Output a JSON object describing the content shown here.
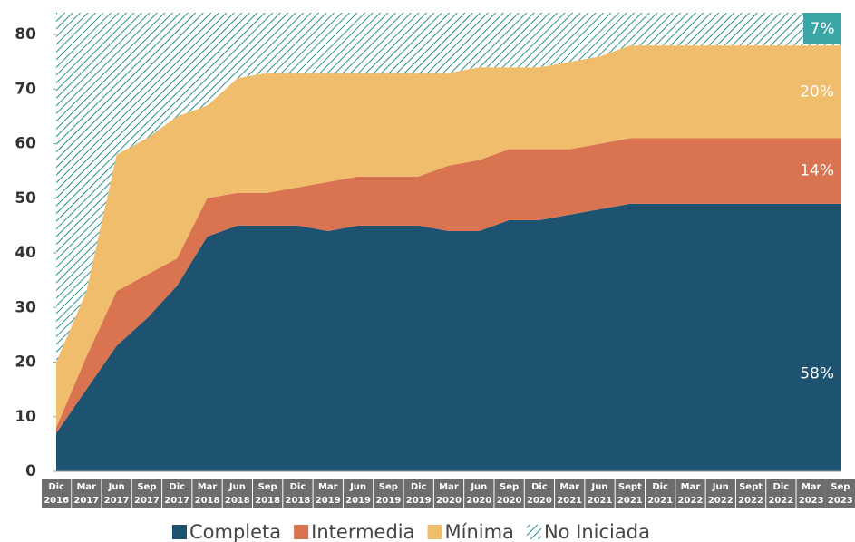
{
  "chart_data": {
    "type": "stacked_area",
    "categories": [
      [
        "Dic",
        "2016"
      ],
      [
        "Mar",
        "2017"
      ],
      [
        "Jun",
        "2017"
      ],
      [
        "Sep",
        "2017"
      ],
      [
        "Dic",
        "2017"
      ],
      [
        "Mar",
        "2018"
      ],
      [
        "Jun",
        "2018"
      ],
      [
        "Sep",
        "2018"
      ],
      [
        "Dic",
        "2018"
      ],
      [
        "Mar",
        "2019"
      ],
      [
        "Jun",
        "2019"
      ],
      [
        "Sep",
        "2019"
      ],
      [
        "Dic",
        "2019"
      ],
      [
        "Mar",
        "2020"
      ],
      [
        "Jun",
        "2020"
      ],
      [
        "Sep",
        "2020"
      ],
      [
        "Dic",
        "2020"
      ],
      [
        "Mar",
        "2021"
      ],
      [
        "Jun",
        "2021"
      ],
      [
        "Sept",
        "2021"
      ],
      [
        "Dic",
        "2021"
      ],
      [
        "Mar",
        "2022"
      ],
      [
        "Jun",
        "2022"
      ],
      [
        "Sept",
        "2022"
      ],
      [
        "Dic",
        "2022"
      ],
      [
        "Mar",
        "2023"
      ],
      [
        "Sep",
        "2023"
      ]
    ],
    "series": [
      {
        "name": "Completa",
        "color": "#1d5370",
        "end_label": "58%",
        "values": [
          7,
          15,
          23,
          28,
          34,
          43,
          45,
          45,
          45,
          44,
          45,
          45,
          45,
          44,
          44,
          46,
          46,
          47,
          48,
          49,
          49,
          49,
          49,
          49,
          49,
          49,
          49
        ]
      },
      {
        "name": "Intermedia",
        "color": "#d97350",
        "end_label": "14%",
        "values": [
          1,
          6,
          10,
          8,
          5,
          7,
          6,
          6,
          7,
          9,
          9,
          9,
          9,
          12,
          13,
          13,
          13,
          12,
          12,
          12,
          12,
          12,
          12,
          12,
          12,
          12,
          12
        ]
      },
      {
        "name": "Mínima",
        "color": "#efbd6c",
        "end_label": "20%",
        "values": [
          12,
          12,
          25,
          25,
          26,
          17,
          21,
          22,
          21,
          20,
          19,
          19,
          19,
          17,
          17,
          15,
          15,
          16,
          16,
          17,
          17,
          17,
          17,
          17,
          17,
          17,
          17
        ]
      },
      {
        "name": "No Iniciada",
        "color": "#2a8f8f",
        "pattern": "hatch",
        "end_label": "7%",
        "values": [
          64,
          51,
          26,
          23,
          19,
          17,
          12,
          11,
          11,
          11,
          11,
          11,
          11,
          11,
          10,
          10,
          10,
          9,
          8,
          6,
          6,
          6,
          6,
          6,
          6,
          6,
          6
        ]
      }
    ],
    "ylim": [
      0,
      84
    ],
    "yticks": [
      0,
      10,
      20,
      30,
      40,
      50,
      60,
      70,
      80
    ],
    "grid": false,
    "legend": "bottom"
  }
}
